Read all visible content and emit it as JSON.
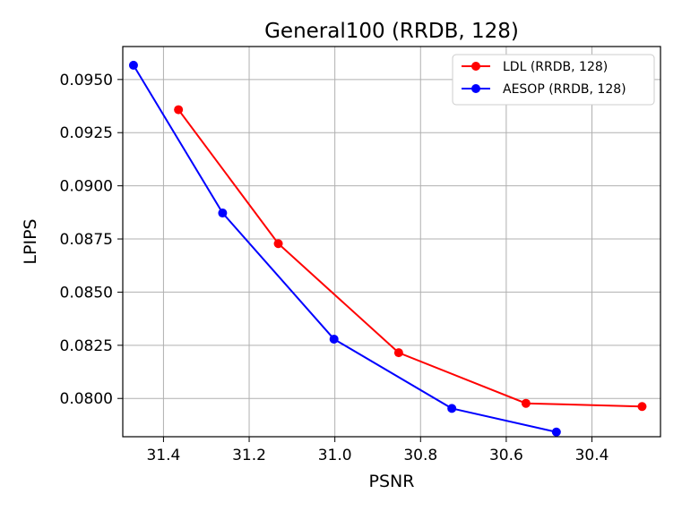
{
  "chart_data": {
    "type": "line",
    "title": "General100 (RRDB, 128)",
    "xlabel": "PSNR",
    "ylabel": "LPIPS",
    "xlim": [
      31.495,
      30.24
    ],
    "ylim": [
      0.0782,
      0.09655
    ],
    "x_ticks": [
      31.4,
      31.2,
      31.0,
      30.8,
      30.6,
      30.4
    ],
    "x_tick_labels": [
      "31.4",
      "31.2",
      "31.0",
      "30.8",
      "30.6",
      "30.4"
    ],
    "y_ticks": [
      0.08,
      0.0825,
      0.085,
      0.0875,
      0.09,
      0.0925,
      0.095
    ],
    "y_tick_labels": [
      "0.0800",
      "0.0825",
      "0.0850",
      "0.0875",
      "0.0900",
      "0.0925",
      "0.0950"
    ],
    "grid": true,
    "legend_position": "top-right",
    "series": [
      {
        "name": "LDL (RRDB, 128)",
        "color": "#ff0000",
        "x": [
          31.365,
          31.132,
          30.851,
          30.554,
          30.283
        ],
        "y": [
          0.09358,
          0.08728,
          0.08215,
          0.07977,
          0.07962
        ]
      },
      {
        "name": "AESOP (RRDB, 128)",
        "color": "#0000ff",
        "x": [
          31.47,
          31.262,
          31.002,
          30.727,
          30.483
        ],
        "y": [
          0.09567,
          0.08872,
          0.08279,
          0.07953,
          0.07842
        ]
      }
    ]
  }
}
